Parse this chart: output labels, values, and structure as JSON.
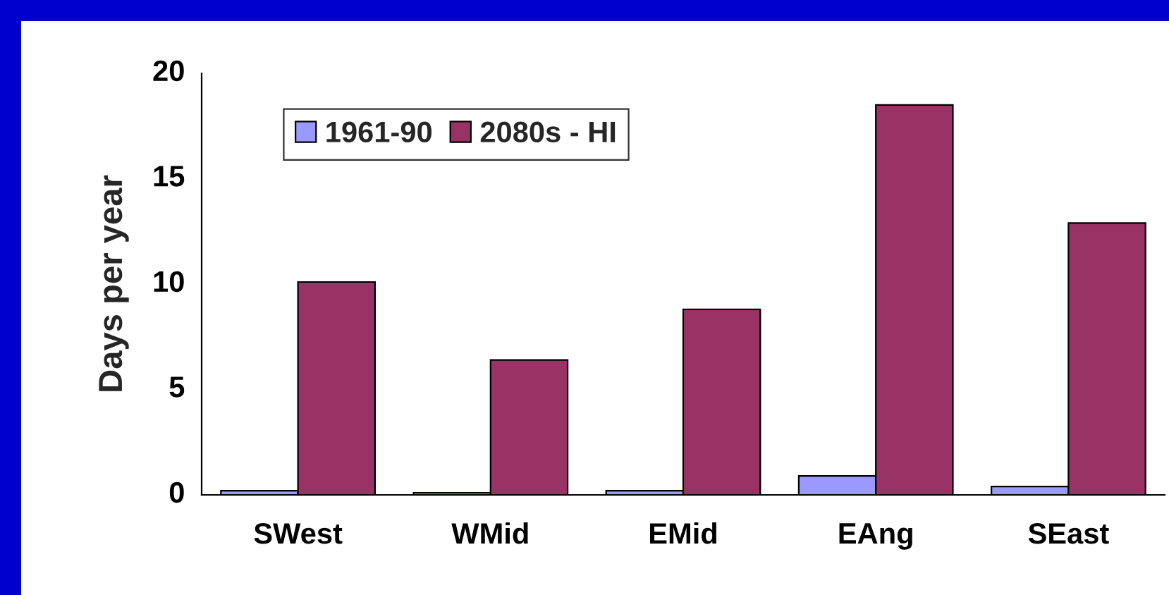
{
  "chart_data": {
    "type": "bar",
    "ylabel": "Days per year",
    "categories": [
      "SWest",
      "WMid",
      "EMid",
      "EAng",
      "SEast"
    ],
    "series": [
      {
        "name": "1961-90",
        "color": "#9999ff",
        "values": [
          0.2,
          0.1,
          0.2,
          0.9,
          0.4
        ]
      },
      {
        "name": "2080s - HI",
        "color": "#993366",
        "values": [
          10.1,
          6.4,
          8.8,
          18.5,
          12.9
        ]
      }
    ],
    "ylim": [
      0,
      20
    ],
    "yticks": [
      0,
      5,
      10,
      15,
      20
    ],
    "grid": false,
    "legend": "top left"
  }
}
